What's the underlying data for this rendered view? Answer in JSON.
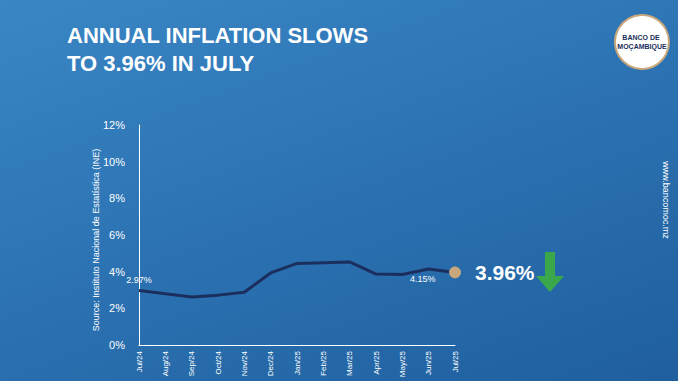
{
  "chart_data": {
    "type": "line",
    "title": "ANNUAL INFLATION SLOWS TO 3.96% IN JULY",
    "source": "Source: Instituto Nacional de Estatística (INE)",
    "website": "www.bancomoc.mz",
    "logo": "BANCO DE MOÇAMBIQUE",
    "categories": [
      "Jul/24",
      "Aug/24",
      "Sep/24",
      "Oct/24",
      "Nov/24",
      "Dec/24",
      "Jan/25",
      "Feb/25",
      "Mar/25",
      "Apr/25",
      "May/25",
      "Jun/25",
      "Jul/25"
    ],
    "values": [
      2.97,
      2.79,
      2.62,
      2.72,
      2.88,
      3.93,
      4.45,
      4.49,
      4.53,
      3.87,
      3.85,
      4.15,
      3.96
    ],
    "value_labels": [
      "2.97%",
      null,
      null,
      null,
      null,
      null,
      null,
      null,
      null,
      null,
      null,
      "4.15%",
      "3.96%"
    ],
    "data_labels": true,
    "color": "#1b2f5e",
    "marker": "circle",
    "ylim": [
      0,
      12
    ],
    "yticks": [
      {
        "value": 0,
        "label": "0%"
      },
      {
        "value": 2,
        "label": "2%"
      },
      {
        "value": 4,
        "label": "4%"
      },
      {
        "value": 6,
        "label": "6%"
      },
      {
        "value": 8,
        "label": "8%"
      },
      {
        "value": 10,
        "label": "10%"
      },
      {
        "value": 12,
        "label": "12%"
      }
    ],
    "grid": false
  }
}
